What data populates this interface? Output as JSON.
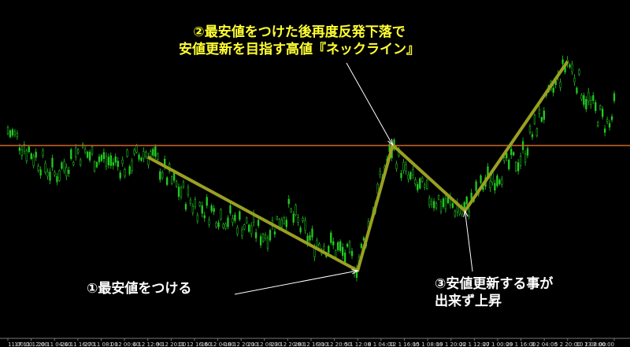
{
  "chart_data": {
    "type": "candlestick",
    "colors": {
      "background": "#000000",
      "candle": "#22cc22",
      "neckline": "#cc6622",
      "pattern": "#9aa020",
      "arrow": "#ffffff"
    },
    "x_ticks": [
      "11 00:00",
      "17 11 12:00",
      "20 11 04:00",
      "24 11 16:00",
      "27 11 08:00",
      "1 12 00:00",
      "4 12 12:00",
      "9 12 20:00",
      "11 12 16:00",
      "16 12 04:00",
      "18 12 20:00",
      "21 12 08:00",
      "23 12 20:00",
      "28 12 16:00",
      "31 12 20:00",
      "5 1 12:00",
      "8 1 04:00",
      "12 1 16:00",
      "15 1 08:00",
      "19 1 20:00",
      "22 1 12:00",
      "27 1 00:00",
      "29 1 16:00",
      "3 2 04:00",
      "5 2 20:00",
      "10 2 08:00",
      "13 2 00:00"
    ],
    "pattern_points": [
      {
        "name": "start",
        "x_index": 6.0,
        "y_level": 0.58
      },
      {
        "name": "low",
        "x_index": 15.0,
        "y_level": 0.2
      },
      {
        "name": "neckline_high",
        "x_index": 16.5,
        "y_level": 0.62
      },
      {
        "name": "higher_low",
        "x_index": 19.6,
        "y_level": 0.4
      },
      {
        "name": "rise_end",
        "x_index": 24.0,
        "y_level": 0.9
      }
    ],
    "neckline_level": 0.62
  },
  "annotations": {
    "top_line1": "②最安値をつけた後再度反発下落で",
    "top_line2": "安値更新を目指す高値『ネックライン』",
    "left_label": "①最安値をつける",
    "right_line1": "③安値更新する事が",
    "right_line2": "出来ず上昇"
  }
}
